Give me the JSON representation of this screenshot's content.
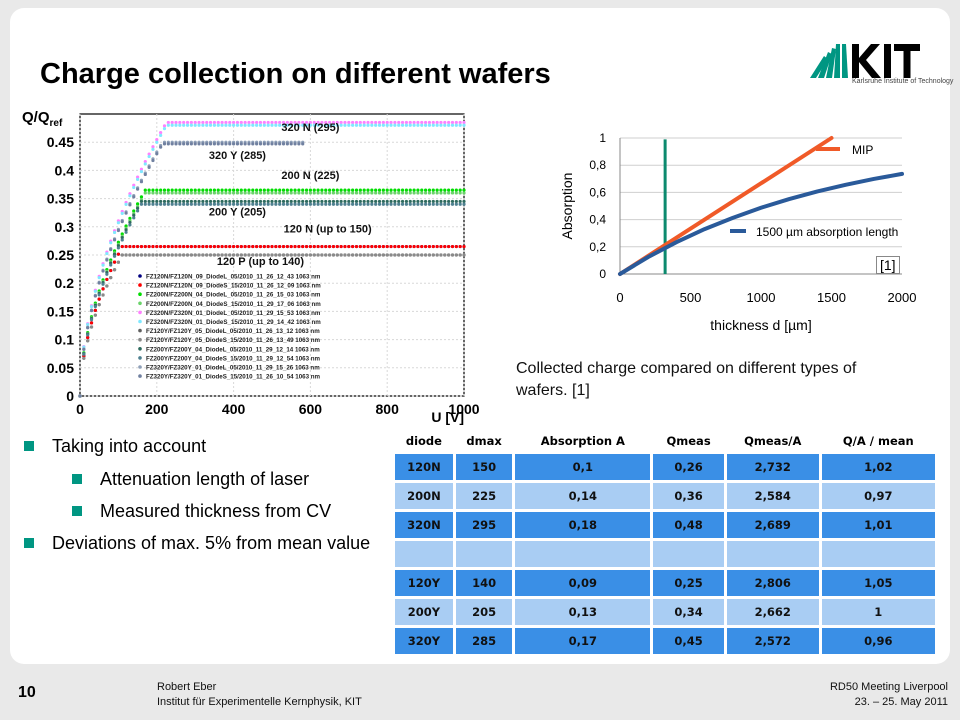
{
  "slide": {
    "title": "Charge collection on different wafers",
    "logo": {
      "name": "KIT",
      "subtitle": "Karlsruhe Institute of Technology"
    },
    "page_number": "10",
    "author": "Robert Eber",
    "institute": "Institut für Experimentelle Kernphysik, KIT",
    "event": "RD50 Meeting Liverpool",
    "date": "23. – 25. May 2011",
    "caption": "Collected charge compared on different types of wafers. [1]",
    "ref_mark": "[1]"
  },
  "bullets": [
    {
      "level": 1,
      "text": "Taking into account"
    },
    {
      "level": 2,
      "text": "Attenuation length of laser"
    },
    {
      "level": 2,
      "text": "Measured thickness from CV"
    },
    {
      "level": 1,
      "text": "Deviations of max. 5% from mean value"
    }
  ],
  "table": {
    "headers": [
      "diode",
      "dmax",
      "Absorption A",
      "Qmeas",
      "Qmeas/A",
      "Q/A  / mean"
    ],
    "rows": [
      {
        "style": "dark",
        "cells": [
          "120N",
          "150",
          "0,1",
          "0,26",
          "2,732",
          "1,02"
        ]
      },
      {
        "style": "light",
        "cells": [
          "200N",
          "225",
          "0,14",
          "0,36",
          "2,584",
          "0,97"
        ]
      },
      {
        "style": "dark",
        "cells": [
          "320N",
          "295",
          "0,18",
          "0,48",
          "2,689",
          "1,01"
        ]
      },
      {
        "style": "light",
        "cells": [
          "",
          "",
          "",
          "",
          "",
          ""
        ]
      },
      {
        "style": "dark",
        "cells": [
          "120Y",
          "140",
          "0,09",
          "0,25",
          "2,806",
          "1,05"
        ]
      },
      {
        "style": "light",
        "cells": [
          "200Y",
          "205",
          "0,13",
          "0,34",
          "2,662",
          "1"
        ]
      },
      {
        "style": "dark",
        "cells": [
          "320Y",
          "285",
          "0,17",
          "0,45",
          "2,572",
          "0,96"
        ]
      }
    ]
  },
  "chart_data": [
    {
      "type": "scatter",
      "ylabel": "Q/Qref",
      "xlabel": "U [V]",
      "xlim": [
        0,
        1000
      ],
      "ylim": [
        0,
        0.5
      ],
      "xticks": [
        0,
        200,
        400,
        600,
        800,
        1000
      ],
      "yticks": [
        0,
        0.05,
        0.1,
        0.15,
        0.2,
        0.25,
        0.3,
        0.35,
        0.4,
        0.45
      ],
      "grid": true,
      "series": [
        {
          "name": "FZ120N/FZ120N_09_DiodeL_05/2010_11_26_12_43 1063 nm",
          "color": "#000080",
          "plateau": 0.265,
          "depletion": 110,
          "stop": 1000
        },
        {
          "name": "FZ120N/FZ120N_09_DiodeS_15/2010_11_26_12_09 1063 nm",
          "color": "#ff0000",
          "plateau": 0.265,
          "depletion": 110,
          "stop": 1000
        },
        {
          "name": "FZ200N/FZ200N_04_DiodeL_05/2010_11_26_15_03 1063 nm",
          "color": "#00dd00",
          "plateau": 0.365,
          "depletion": 170,
          "stop": 1000
        },
        {
          "name": "FZ200N/FZ200N_04_DiodeS_15/2010_11_29_17_06 1063 nm",
          "color": "#6ad36a",
          "plateau": 0.36,
          "depletion": 170,
          "stop": 1000
        },
        {
          "name": "FZ320N/FZ320N_01_DiodeL_05/2010_11_29_15_53 1063 nm",
          "color": "#ff80ff",
          "plateau": 0.485,
          "depletion": 225,
          "stop": 1000
        },
        {
          "name": "FZ320N/FZ320N_01_DiodeS_15/2010_11_29_14_42 1063 nm",
          "color": "#80e8ff",
          "plateau": 0.48,
          "depletion": 225,
          "stop": 1000
        },
        {
          "name": "FZ120Y/FZ120Y_05_DiodeL_05/2010_11_26_13_12 1063 nm",
          "color": "#606060",
          "plateau": 0.25,
          "depletion": 110,
          "stop": 1000
        },
        {
          "name": "FZ120Y/FZ120Y_05_DiodeS_15/2010_11_26_13_49 1063 nm",
          "color": "#8a8a8a",
          "plateau": 0.25,
          "depletion": 110,
          "stop": 1000
        },
        {
          "name": "FZ200Y/FZ200Y_04_DiodeL_05/2010_11_29_12_14 1063 nm",
          "color": "#2e6b5e",
          "plateau": 0.345,
          "depletion": 160,
          "stop": 1000
        },
        {
          "name": "FZ200Y/FZ200Y_04_DiodeS_15/2010_11_29_12_54 1063 nm",
          "color": "#4e8090",
          "plateau": 0.34,
          "depletion": 160,
          "stop": 1000
        },
        {
          "name": "FZ320Y/FZ320Y_01_DiodeL_05/2010_11_29_15_26 1063 nm",
          "color": "#8fa0b8",
          "plateau": 0.45,
          "depletion": 215,
          "stop": 580
        },
        {
          "name": "FZ320Y/FZ320Y_01_DiodeS_15/2010_11_26_10_54 1063 nm",
          "color": "#7080a0",
          "plateau": 0.447,
          "depletion": 215,
          "stop": 580
        }
      ],
      "annotations": [
        {
          "text": "320 N (295)",
          "x": 600,
          "y": 0.47
        },
        {
          "text": "320 Y (285)",
          "x": 410,
          "y": 0.42
        },
        {
          "text": "200 N (225)",
          "x": 600,
          "y": 0.385
        },
        {
          "text": "200 Y  (205)",
          "x": 410,
          "y": 0.32
        },
        {
          "text": "120 N    (up to 150)",
          "x": 645,
          "y": 0.29
        },
        {
          "text": "120 P   (up to 140)",
          "x": 470,
          "y": 0.232
        }
      ]
    },
    {
      "type": "line",
      "xlabel": "thickness d [µm]",
      "ylabel": "Absorption",
      "xlim": [
        0,
        2000
      ],
      "ylim": [
        0,
        1
      ],
      "xticks": [
        0,
        500,
        1000,
        1500,
        2000
      ],
      "yticks": [
        0,
        0.2,
        0.4,
        0.6,
        0.8,
        1
      ],
      "yticklabels": [
        "0",
        "0,2",
        "0,4",
        "0,6",
        "0,8",
        "1"
      ],
      "vline_x": 320,
      "series": [
        {
          "name": "MIP",
          "color": "#f05a28",
          "x": [
            0,
            1500
          ],
          "y": [
            0,
            1
          ]
        },
        {
          "name": "1500 µm  absorption length",
          "color": "#2a5a9a",
          "x": [
            0,
            200,
            400,
            600,
            800,
            1000,
            1200,
            1400,
            1600,
            1800,
            2000
          ],
          "y": [
            0,
            0.125,
            0.234,
            0.33,
            0.413,
            0.487,
            0.551,
            0.607,
            0.656,
            0.699,
            0.736
          ]
        }
      ]
    }
  ]
}
